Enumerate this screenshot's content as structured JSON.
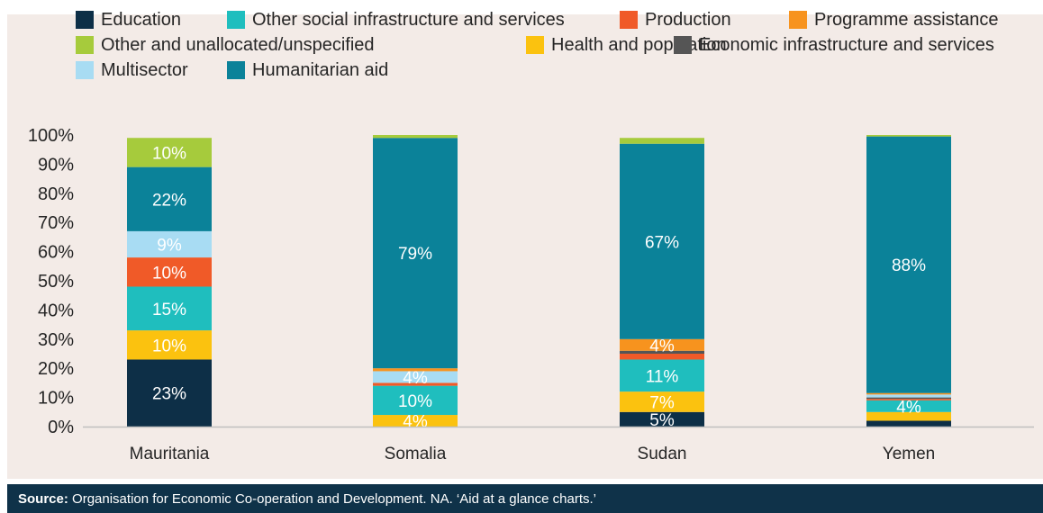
{
  "source": {
    "label": "Source:",
    "text": "Organisation for Economic Co-operation and Development. NA. ‘Aid at a glance charts.’"
  },
  "chart_data": {
    "type": "bar",
    "stacked": true,
    "categories": [
      "Mauritania",
      "Somalia",
      "Sudan",
      "Yemen"
    ],
    "ylim": [
      0,
      100
    ],
    "yticks": [
      "0%",
      "10%",
      "20%",
      "30%",
      "40%",
      "50%",
      "60%",
      "70%",
      "80%",
      "90%",
      "100%"
    ],
    "legend_position": "top",
    "series": [
      {
        "name": "Education",
        "color": "#0d2f47",
        "values": [
          23,
          0,
          5,
          2
        ],
        "labels": [
          "23%",
          "",
          "5%",
          ""
        ]
      },
      {
        "name": "Health and population",
        "color": "#fbc20f",
        "values": [
          10,
          4,
          7,
          3
        ],
        "labels": [
          "10%",
          "4%",
          "7%",
          ""
        ]
      },
      {
        "name": "Other social infrastructure and services",
        "color": "#1fbebe",
        "values": [
          15,
          10,
          11,
          4
        ],
        "labels": [
          "15%",
          "10%",
          "11%",
          "4%"
        ]
      },
      {
        "name": "Production",
        "color": "#f05a28",
        "values": [
          10,
          1,
          2,
          0.5
        ],
        "labels": [
          "10%",
          "",
          "",
          ""
        ]
      },
      {
        "name": "Economic infrastructure and services",
        "color": "#555555",
        "values": [
          0,
          0,
          1,
          0.5
        ],
        "labels": [
          "",
          "",
          "",
          ""
        ]
      },
      {
        "name": "Multisector",
        "color": "#a8dcf3",
        "values": [
          9,
          4,
          0,
          1
        ],
        "labels": [
          "9%",
          "4%",
          "",
          ""
        ]
      },
      {
        "name": "Programme assistance",
        "color": "#f7931e",
        "values": [
          0,
          1,
          4,
          0.5
        ],
        "labels": [
          "",
          "",
          "4%",
          ""
        ]
      },
      {
        "name": "Humanitarian aid",
        "color": "#0b8299",
        "values": [
          22,
          79,
          67,
          88
        ],
        "labels": [
          "22%",
          "79%",
          "67%",
          "88%"
        ]
      },
      {
        "name": "Other and unallocated/unspecified",
        "color": "#a6cb3c",
        "values": [
          10,
          1,
          2,
          0.5
        ],
        "labels": [
          "10%",
          "",
          "",
          ""
        ]
      }
    ],
    "legend": [
      {
        "name": "Education",
        "color": "#0d2f47"
      },
      {
        "name": "Other social infrastructure and services",
        "color": "#1fbebe"
      },
      {
        "name": "Production",
        "color": "#f05a28"
      },
      {
        "name": "Programme assistance",
        "color": "#f7931e"
      },
      {
        "name": "Other and unallocated/unspecified",
        "color": "#a6cb3c"
      },
      {
        "name": "Health and population",
        "color": "#fbc20f"
      },
      {
        "name": "Economic infrastructure and services",
        "color": "#555555"
      },
      {
        "name": "Multisector",
        "color": "#a8dcf3"
      },
      {
        "name": "Humanitarian aid",
        "color": "#0b8299"
      }
    ]
  }
}
